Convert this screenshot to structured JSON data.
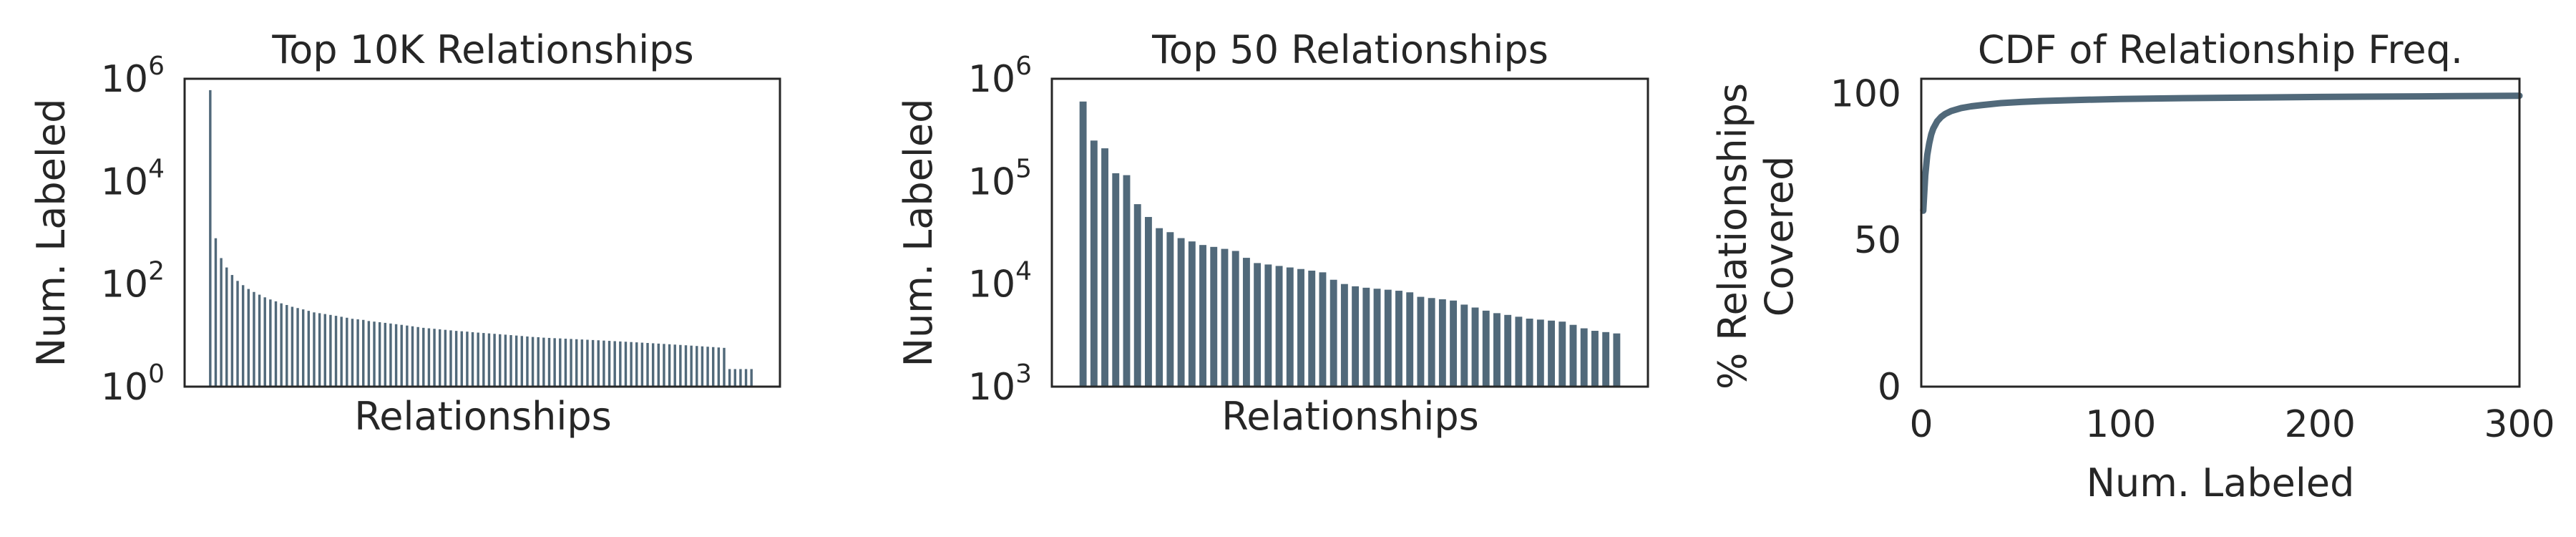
{
  "colors": {
    "bar": "#51697a",
    "line": "#51697a",
    "frame": "#262626",
    "text": "#262626"
  },
  "chart_data": [
    {
      "type": "bar",
      "title": "Top 10K Relationships",
      "xlabel": "Relationships",
      "ylabel": "Num. Labeled",
      "yscale": "log",
      "ylim": [
        1,
        1000000
      ],
      "yticks": [
        {
          "base": "10",
          "exp": "0",
          "value": 1
        },
        {
          "base": "10",
          "exp": "2",
          "value": 100
        },
        {
          "base": "10",
          "exp": "4",
          "value": 10000
        },
        {
          "base": "10",
          "exp": "6",
          "value": 1000000
        }
      ],
      "grid": false,
      "bar_count_shown": 100,
      "values": [
        600000,
        780,
        320,
        210,
        150,
        115,
        95,
        80,
        70,
        62,
        55,
        50,
        46,
        42,
        39,
        36,
        34,
        32,
        30,
        28,
        27,
        26,
        25,
        24,
        23,
        22,
        21,
        20.5,
        20,
        19,
        18.5,
        18,
        17.5,
        17,
        16.5,
        16,
        15.5,
        15,
        14.5,
        14,
        13.7,
        13.4,
        13.1,
        12.8,
        12.5,
        12.2,
        12,
        11.8,
        11.5,
        11.3,
        11.1,
        10.9,
        10.7,
        10.5,
        10.3,
        10.1,
        9.9,
        9.7,
        9.5,
        9.3,
        9.2,
        9,
        8.9,
        8.8,
        8.7,
        8.6,
        8.5,
        8.4,
        8.3,
        8.2,
        8.1,
        8,
        7.9,
        7.8,
        7.7,
        7.6,
        7.5,
        7.4,
        7.3,
        7.2,
        7.1,
        7,
        6.9,
        6.8,
        6.7,
        6.6,
        6.5,
        6.4,
        6.3,
        6.2,
        6.1,
        6,
        5.9,
        5.8,
        5.7,
        2.2,
        2.2,
        2.2,
        2.2,
        2.2
      ]
    },
    {
      "type": "bar",
      "title": "Top 50 Relationships",
      "xlabel": "Relationships",
      "ylabel": "Num. Labeled",
      "yscale": "log",
      "ylim": [
        1000,
        1000000
      ],
      "yticks": [
        {
          "base": "10",
          "exp": "3",
          "value": 1000
        },
        {
          "base": "10",
          "exp": "4",
          "value": 10000
        },
        {
          "base": "10",
          "exp": "5",
          "value": 100000
        },
        {
          "base": "10",
          "exp": "6",
          "value": 1000000
        }
      ],
      "grid": false,
      "values": [
        600000,
        250000,
        210000,
        120000,
        115000,
        60000,
        45000,
        35000,
        32000,
        28000,
        26000,
        24000,
        23000,
        22000,
        21000,
        18000,
        16000,
        15500,
        15000,
        14500,
        14000,
        13500,
        13000,
        11000,
        10000,
        9500,
        9200,
        9000,
        8800,
        8600,
        8300,
        7500,
        7300,
        7100,
        6900,
        6300,
        5900,
        5500,
        5200,
        5000,
        4800,
        4600,
        4500,
        4400,
        4300,
        4000,
        3700,
        3500,
        3400,
        3300
      ]
    },
    {
      "type": "line",
      "title": "CDF of Relationship Freq.",
      "xlabel": "Num. Labeled",
      "ylabel": [
        "% Relationships",
        "Covered"
      ],
      "xlim": [
        0,
        300
      ],
      "ylim": [
        0,
        105
      ],
      "xticks": [
        "0",
        "100",
        "200",
        "300"
      ],
      "yticks": [
        "0",
        "50",
        "100"
      ],
      "grid": false,
      "x": [
        1,
        2,
        3,
        4,
        5,
        6,
        8,
        10,
        12,
        15,
        20,
        25,
        30,
        40,
        50,
        60,
        80,
        100,
        120,
        150,
        200,
        250,
        300
      ],
      "y": [
        60,
        72,
        79,
        83,
        86,
        88,
        90.5,
        92,
        93,
        94,
        95,
        95.6,
        96,
        96.7,
        97.1,
        97.4,
        97.8,
        98.1,
        98.3,
        98.5,
        98.8,
        99,
        99.2
      ]
    }
  ]
}
